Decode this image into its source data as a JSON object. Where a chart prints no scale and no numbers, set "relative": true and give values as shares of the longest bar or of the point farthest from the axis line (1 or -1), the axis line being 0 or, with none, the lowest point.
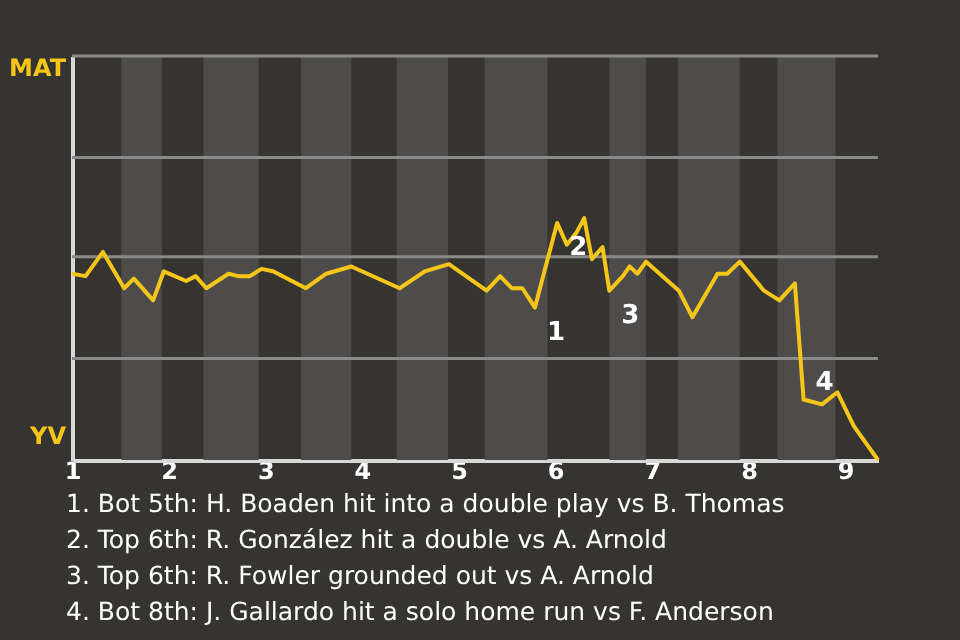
{
  "chart_data": {
    "type": "line",
    "relative": true,
    "x": [
      1.0,
      1.14,
      1.32,
      1.54,
      1.64,
      1.84,
      1.95,
      2.18,
      2.28,
      2.39,
      2.62,
      2.72,
      2.84,
      2.96,
      3.08,
      3.42,
      3.63,
      3.89,
      4.39,
      4.65,
      4.9,
      5.29,
      5.43,
      5.55,
      5.66,
      5.79,
      6.02,
      6.12,
      6.22,
      6.3,
      6.38,
      6.49,
      6.56,
      6.7,
      6.77,
      6.85,
      6.94,
      7.28,
      7.42,
      7.68,
      7.78,
      7.91,
      8.16,
      8.32,
      8.48,
      8.57,
      8.76,
      8.92,
      9.09,
      9.34
    ],
    "series": [
      {
        "color": "#f5c518",
        "values": [
          0.77,
          0.76,
          0.86,
          0.71,
          0.75,
          0.66,
          0.78,
          0.74,
          0.76,
          0.71,
          0.77,
          0.76,
          0.76,
          0.79,
          0.78,
          0.71,
          0.77,
          0.8,
          0.71,
          0.78,
          0.81,
          0.7,
          0.76,
          0.71,
          0.71,
          0.63,
          0.98,
          0.89,
          0.94,
          1.0,
          0.83,
          0.88,
          0.7,
          0.76,
          0.8,
          0.77,
          0.82,
          0.7,
          0.59,
          0.77,
          0.77,
          0.82,
          0.7,
          0.66,
          0.73,
          0.25,
          0.23,
          0.28,
          0.14,
          0
        ]
      }
    ],
    "xlim": [
      1,
      9.34
    ],
    "xticks": [
      1,
      2,
      3,
      4,
      5,
      6,
      7,
      8,
      9
    ],
    "marker": "none",
    "line_style": "solid",
    "ref_lines": [
      {
        "axis": "y",
        "value": 0.42,
        "color": "#8a8a8a"
      },
      {
        "axis": "y",
        "value": 0.84,
        "color": "#8a8a8a"
      },
      {
        "axis": "y",
        "value": 1.25,
        "color": "#8a8a8a"
      },
      {
        "axis": "y",
        "value": 1.67,
        "color": "#8a8a8a"
      }
    ],
    "bands": [
      {
        "axis": "x",
        "from": 1.51,
        "to": 1.93,
        "color": "#4d4c4a"
      },
      {
        "axis": "x",
        "from": 2.36,
        "to": 2.93,
        "color": "#4d4c4a"
      },
      {
        "axis": "x",
        "from": 3.37,
        "to": 3.89,
        "color": "#4d4c4a"
      },
      {
        "axis": "x",
        "from": 4.36,
        "to": 4.89,
        "color": "#4d4c4a"
      },
      {
        "axis": "x",
        "from": 5.27,
        "to": 5.92,
        "color": "#4d4c4a"
      },
      {
        "axis": "x",
        "from": 6.56,
        "to": 6.94,
        "color": "#4d4c4a"
      },
      {
        "axis": "x",
        "from": 7.27,
        "to": 7.91,
        "color": "#4d4c4a"
      },
      {
        "axis": "x",
        "from": 8.3,
        "to": 8.9,
        "color": "#4d4c4a"
      }
    ],
    "annotations": [
      {
        "text": "1",
        "x": 5.79,
        "y": 0.63
      },
      {
        "text": "2",
        "x": 6.02,
        "y": 0.98
      },
      {
        "text": "3",
        "x": 6.56,
        "y": 0.7
      },
      {
        "text": "4",
        "x": 8.57,
        "y": 0.42
      },
      "MAT",
      "YV",
      "1. Bot 5th: H. Boaden hit into a double play vs B. Thomas",
      "2. Top 6th: R. González hit a double vs A. Arnold",
      "3. Top 6th: R. Fowler grounded out vs A. Arnold",
      "4. Bot 8th: J. Gallardo hit a solo home run vs F. Anderson"
    ]
  }
}
